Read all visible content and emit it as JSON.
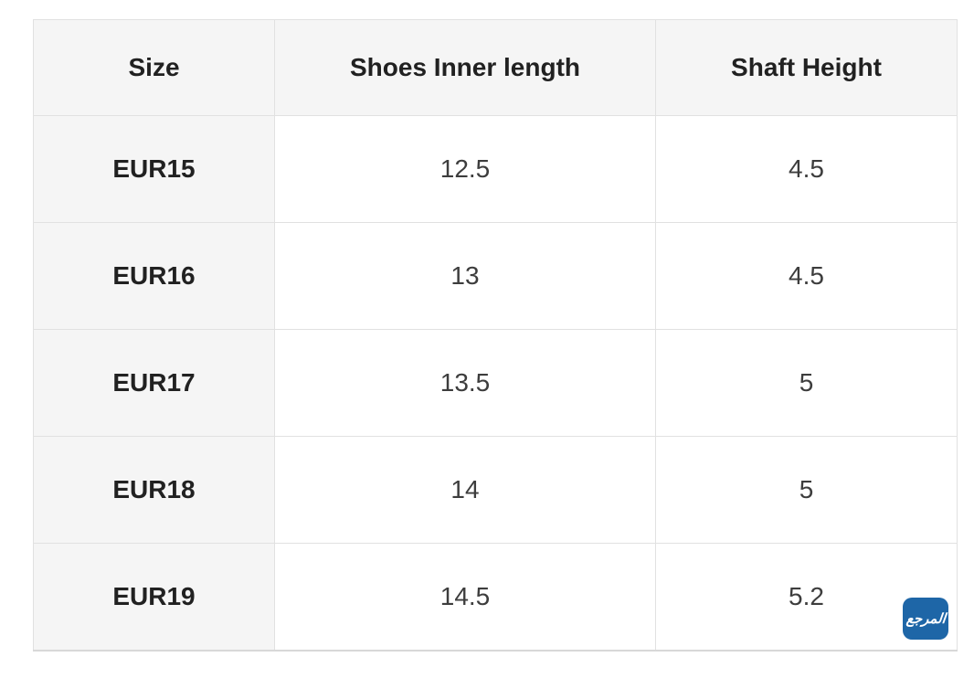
{
  "size_chart": {
    "columns": [
      {
        "label": "Size"
      },
      {
        "label": "Shoes Inner length"
      },
      {
        "label": "Shaft Height"
      }
    ],
    "rows": [
      {
        "size": "EUR15",
        "inner_length": "12.5",
        "shaft_height": "4.5"
      },
      {
        "size": "EUR16",
        "inner_length": "13",
        "shaft_height": "4.5"
      },
      {
        "size": "EUR17",
        "inner_length": "13.5",
        "shaft_height": "5"
      },
      {
        "size": "EUR18",
        "inner_length": "14",
        "shaft_height": "5"
      },
      {
        "size": "EUR19",
        "inner_length": "14.5",
        "shaft_height": "5.2"
      }
    ],
    "styles": {
      "header_background": "#f5f5f5",
      "size_column_background": "#f5f5f5",
      "cell_background": "#ffffff",
      "border_color": "#e1e1e1",
      "header_text_color": "#212121",
      "value_text_color": "#3d3d3d"
    }
  },
  "watermark": {
    "text": "المرجع",
    "background": "#1e66a7",
    "text_color": "#ffffff"
  }
}
